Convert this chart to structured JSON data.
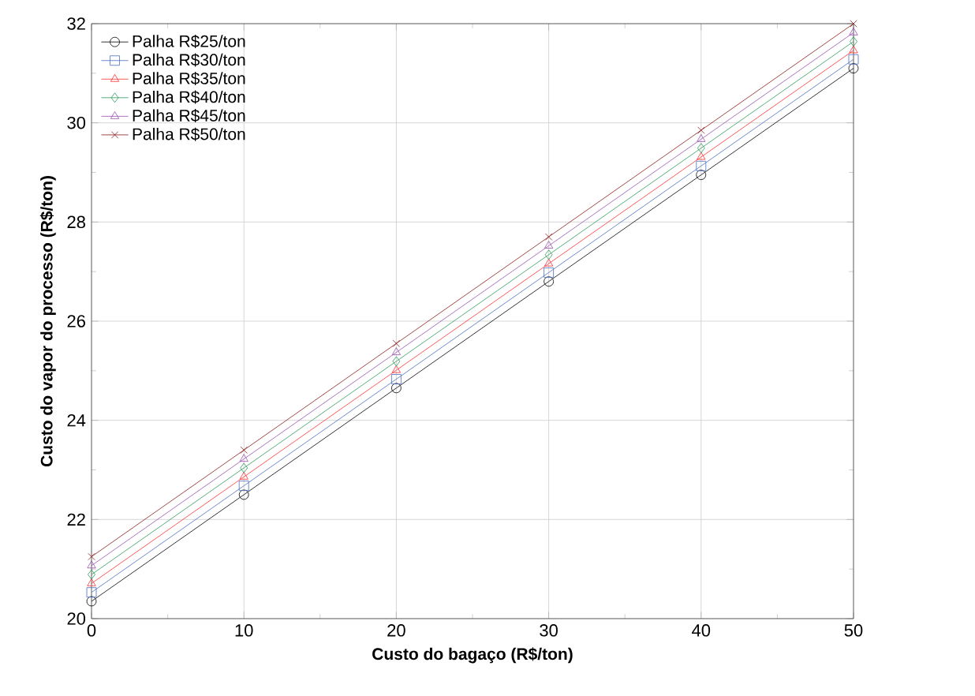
{
  "chart_data": {
    "type": "line",
    "xlabel": "Custo do bagaço (R$/ton)",
    "ylabel": "Custo do vapor do processo (R$/ton)",
    "x": [
      0,
      10,
      20,
      30,
      40,
      50
    ],
    "series": [
      {
        "name": "Palha R$25/ton",
        "color": "#000000",
        "marker": "circle",
        "values": [
          20.35,
          22.5,
          24.65,
          26.8,
          28.95,
          31.1
        ]
      },
      {
        "name": "Palha R$30/ton",
        "color": "#4a6fc0",
        "marker": "square",
        "values": [
          20.53,
          22.68,
          24.83,
          26.98,
          29.13,
          31.28
        ]
      },
      {
        "name": "Palha R$35/ton",
        "color": "#ff3030",
        "marker": "triangle",
        "values": [
          20.71,
          22.86,
          25.01,
          27.16,
          29.31,
          31.46
        ]
      },
      {
        "name": "Palha R$40/ton",
        "color": "#2e9a5a",
        "marker": "diamond",
        "values": [
          20.89,
          23.04,
          25.19,
          27.34,
          29.49,
          31.64
        ]
      },
      {
        "name": "Palha R$45/ton",
        "color": "#9a50b0",
        "marker": "triangle-down",
        "values": [
          21.07,
          23.22,
          25.37,
          27.52,
          29.67,
          31.82
        ]
      },
      {
        "name": "Palha R$50/ton",
        "color": "#8b1a1a",
        "marker": "cross",
        "values": [
          21.25,
          23.4,
          25.55,
          27.7,
          29.85,
          32.0
        ]
      }
    ],
    "xlim": [
      0,
      50
    ],
    "ylim": [
      20,
      32
    ],
    "xticks": [
      0,
      10,
      20,
      30,
      40,
      50
    ],
    "yticks": [
      20,
      22,
      24,
      26,
      28,
      30,
      32
    ],
    "grid": true,
    "legend": "top left",
    "line_style": "solid"
  }
}
